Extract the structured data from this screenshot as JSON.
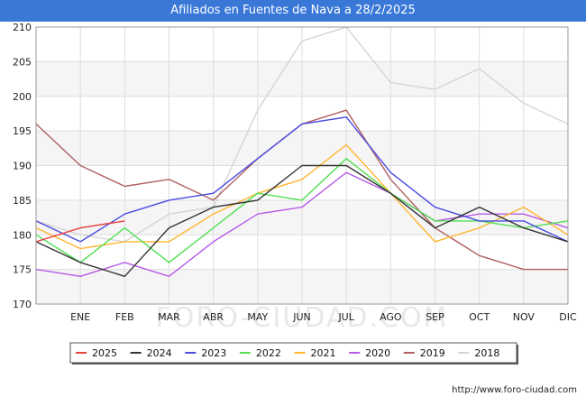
{
  "header": {
    "title": "Afiliados en Fuentes de Nava a 28/2/2025"
  },
  "footer": {
    "source": "http://www.foro-ciudad.com"
  },
  "watermark": "FORO-CIUDAD.COM",
  "chart_data": {
    "type": "line",
    "title": "Afiliados en Fuentes de Nava a 28/2/2025",
    "xlabel": "",
    "ylabel": "",
    "categories": [
      "",
      "ENE",
      "FEB",
      "MAR",
      "ABR",
      "MAY",
      "JUN",
      "JUL",
      "AGO",
      "SEP",
      "OCT",
      "NOV",
      "DIC"
    ],
    "ylim": [
      170,
      210
    ],
    "yticks": [
      170,
      175,
      180,
      185,
      190,
      195,
      200,
      205,
      210
    ],
    "grid": true,
    "legend_position": "bottom",
    "series": [
      {
        "name": "2025",
        "color": "#e8413c",
        "values": [
          179,
          181,
          182,
          null,
          null,
          null,
          null,
          null,
          null,
          null,
          null,
          null,
          null
        ]
      },
      {
        "name": "2024",
        "color": "#333333",
        "values": [
          179,
          176,
          174,
          181,
          184,
          185,
          190,
          190,
          186,
          181,
          184,
          181,
          179
        ]
      },
      {
        "name": "2023",
        "color": "#4a4ae0",
        "values": [
          182,
          179,
          183,
          185,
          186,
          191,
          196,
          197,
          189,
          184,
          182,
          182,
          179
        ]
      },
      {
        "name": "2022",
        "color": "#50e050",
        "values": [
          180,
          176,
          181,
          176,
          181,
          186,
          185,
          191,
          186,
          182,
          182,
          181,
          182
        ]
      },
      {
        "name": "2021",
        "color": "#ffb630",
        "values": [
          181,
          178,
          179,
          179,
          183,
          186,
          188,
          193,
          186,
          179,
          181,
          184,
          180
        ]
      },
      {
        "name": "2020",
        "color": "#b75ae8",
        "values": [
          175,
          174,
          176,
          174,
          179,
          183,
          184,
          189,
          186,
          182,
          183,
          183,
          181
        ]
      },
      {
        "name": "2019",
        "color": "#b06060",
        "values": [
          196,
          190,
          187,
          188,
          185,
          191,
          196,
          198,
          188,
          181,
          177,
          175,
          175
        ]
      },
      {
        "name": "2018",
        "color": "#d4d4d4",
        "values": [
          182,
          180,
          179,
          183,
          184,
          198,
          208,
          210,
          202,
          201,
          204,
          199,
          196
        ]
      }
    ]
  }
}
